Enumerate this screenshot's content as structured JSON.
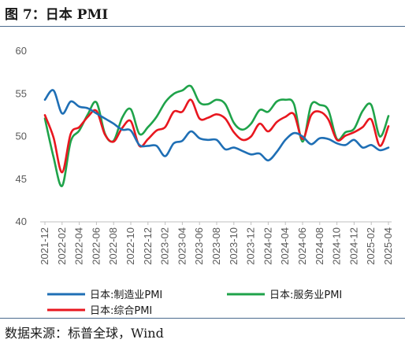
{
  "title": "图 7：日本 PMI",
  "source": "数据来源：标普全球，Wind",
  "chart_data": {
    "type": "line",
    "ylim": [
      40,
      60
    ],
    "yticks": [
      40,
      45,
      50,
      55,
      60
    ],
    "grid": false,
    "legend_position": "bottom",
    "x": [
      "2021-12",
      "2022-01",
      "2022-02",
      "2022-03",
      "2022-04",
      "2022-05",
      "2022-06",
      "2022-07",
      "2022-08",
      "2022-09",
      "2022-10",
      "2022-11",
      "2022-12",
      "2023-01",
      "2023-02",
      "2023-03",
      "2023-04",
      "2023-05",
      "2023-06",
      "2023-07",
      "2023-08",
      "2023-09",
      "2023-10",
      "2023-11",
      "2023-12",
      "2024-01",
      "2024-02",
      "2024-03",
      "2024-04",
      "2024-05",
      "2024-06",
      "2024-07",
      "2024-08",
      "2024-09",
      "2024-10",
      "2024-11",
      "2024-12",
      "2025-01",
      "2025-02",
      "2025-03",
      "2025-04"
    ],
    "xtick_labels": [
      "2021-12",
      "2022-02",
      "2022-04",
      "2022-06",
      "2022-08",
      "2022-10",
      "2022-12",
      "2023-02",
      "2023-04",
      "2023-06",
      "2023-08",
      "2023-10",
      "2023-12",
      "2024-02",
      "2024-04",
      "2024-06",
      "2024-08",
      "2024-10",
      "2024-12",
      "2025-02",
      "2025-04"
    ],
    "series": [
      {
        "name": "日本:制造业PMI",
        "color": "#1f6fb5",
        "values": [
          54.3,
          55.4,
          52.7,
          54.1,
          53.5,
          53.3,
          52.7,
          52.1,
          51.5,
          50.8,
          50.7,
          49.0,
          48.9,
          48.9,
          47.7,
          49.2,
          49.5,
          50.6,
          49.8,
          49.6,
          49.6,
          48.5,
          48.7,
          48.3,
          47.9,
          48.0,
          47.2,
          48.2,
          49.6,
          50.4,
          50.0,
          49.1,
          49.8,
          49.7,
          49.2,
          49.0,
          49.6,
          48.7,
          49.0,
          48.4,
          48.7
        ]
      },
      {
        "name": "日本:服务业PMI",
        "color": "#1fa34a",
        "values": [
          52.1,
          47.6,
          44.2,
          49.4,
          50.7,
          52.6,
          54.0,
          50.3,
          49.5,
          52.2,
          53.2,
          50.3,
          51.1,
          52.3,
          54.0,
          55.0,
          55.4,
          55.9,
          54.0,
          53.8,
          54.3,
          53.8,
          51.6,
          50.8,
          51.5,
          53.1,
          52.9,
          54.1,
          54.3,
          53.8,
          49.4,
          53.7,
          53.7,
          53.1,
          49.7,
          50.5,
          50.9,
          53.0,
          53.7,
          50.0,
          52.4
        ]
      },
      {
        "name": "日本:综合PMI",
        "color": "#e8171f",
        "values": [
          52.5,
          49.9,
          45.8,
          50.3,
          51.1,
          52.3,
          53.0,
          50.2,
          49.4,
          51.0,
          51.8,
          48.9,
          49.7,
          50.7,
          51.1,
          52.9,
          52.9,
          54.3,
          52.1,
          52.2,
          52.6,
          52.1,
          50.5,
          49.6,
          50.0,
          51.5,
          50.6,
          51.7,
          52.3,
          52.6,
          49.7,
          52.5,
          52.9,
          52.0,
          49.6,
          50.1,
          50.5,
          51.1,
          52.0,
          48.9,
          51.2
        ]
      }
    ]
  }
}
